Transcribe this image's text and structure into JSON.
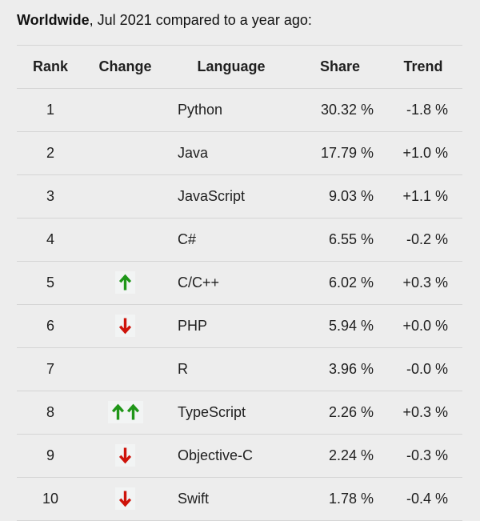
{
  "title": {
    "location": "Worldwide",
    "rest": ", Jul 2021 compared to a year ago:"
  },
  "table": {
    "headers": [
      "Rank",
      "Change",
      "Language",
      "Share",
      "Trend"
    ],
    "rows": [
      {
        "rank": "1",
        "change": "",
        "language": "Python",
        "share": "30.32 %",
        "trend": "-1.8 %"
      },
      {
        "rank": "2",
        "change": "",
        "language": "Java",
        "share": "17.79 %",
        "trend": "+1.0 %"
      },
      {
        "rank": "3",
        "change": "",
        "language": "JavaScript",
        "share": "9.03 %",
        "trend": "+1.1 %"
      },
      {
        "rank": "4",
        "change": "",
        "language": "C#",
        "share": "6.55 %",
        "trend": "-0.2 %"
      },
      {
        "rank": "5",
        "change": "up",
        "language": "C/C++",
        "share": "6.02 %",
        "trend": "+0.3 %"
      },
      {
        "rank": "6",
        "change": "down",
        "language": "PHP",
        "share": "5.94 %",
        "trend": "+0.0 %"
      },
      {
        "rank": "7",
        "change": "",
        "language": "R",
        "share": "3.96 %",
        "trend": "-0.0 %"
      },
      {
        "rank": "8",
        "change": "up-up",
        "language": "TypeScript",
        "share": "2.26 %",
        "trend": "+0.3 %"
      },
      {
        "rank": "9",
        "change": "down",
        "language": "Objective-C",
        "share": "2.24 %",
        "trend": "-0.3 %"
      },
      {
        "rank": "10",
        "change": "down",
        "language": "Swift",
        "share": "1.78 %",
        "trend": "-0.4 %"
      }
    ]
  },
  "colors": {
    "page_bg": "#ededed",
    "divider": "#d5d5d5",
    "text": "#1f1f1f",
    "up_arrow": "#1f9618",
    "down_arrow": "#ce130a",
    "badge_bg": "#f2f4f4"
  },
  "chart_data": {
    "type": "table",
    "title": "Worldwide, Jul 2021 compared to a year ago:",
    "columns": [
      "Rank",
      "Change",
      "Language",
      "Share",
      "Trend"
    ],
    "rows": [
      [
        1,
        "",
        "Python",
        "30.32 %",
        "-1.8 %"
      ],
      [
        2,
        "",
        "Java",
        "17.79 %",
        "+1.0 %"
      ],
      [
        3,
        "",
        "JavaScript",
        "9.03 %",
        "+1.1 %"
      ],
      [
        4,
        "",
        "C#",
        "6.55 %",
        "-0.2 %"
      ],
      [
        5,
        "↑",
        "C/C++",
        "6.02 %",
        "+0.3 %"
      ],
      [
        6,
        "↓",
        "PHP",
        "5.94 %",
        "+0.0 %"
      ],
      [
        7,
        "",
        "R",
        "3.96 %",
        "-0.0 %"
      ],
      [
        8,
        "↑↑",
        "TypeScript",
        "2.26 %",
        "+0.3 %"
      ],
      [
        9,
        "↓",
        "Objective-C",
        "2.24 %",
        "-0.3 %"
      ],
      [
        10,
        "↓",
        "Swift",
        "1.78 %",
        "-0.4 %"
      ]
    ],
    "share_values_pct": [
      30.32,
      17.79,
      9.03,
      6.55,
      6.02,
      5.94,
      3.96,
      2.26,
      2.24,
      1.78
    ],
    "trend_values_pct": [
      -1.8,
      1.0,
      1.1,
      -0.2,
      0.3,
      0.0,
      -0.0,
      0.3,
      -0.3,
      -0.4
    ],
    "legend_position": "none",
    "grid": "row-dividers-only"
  }
}
